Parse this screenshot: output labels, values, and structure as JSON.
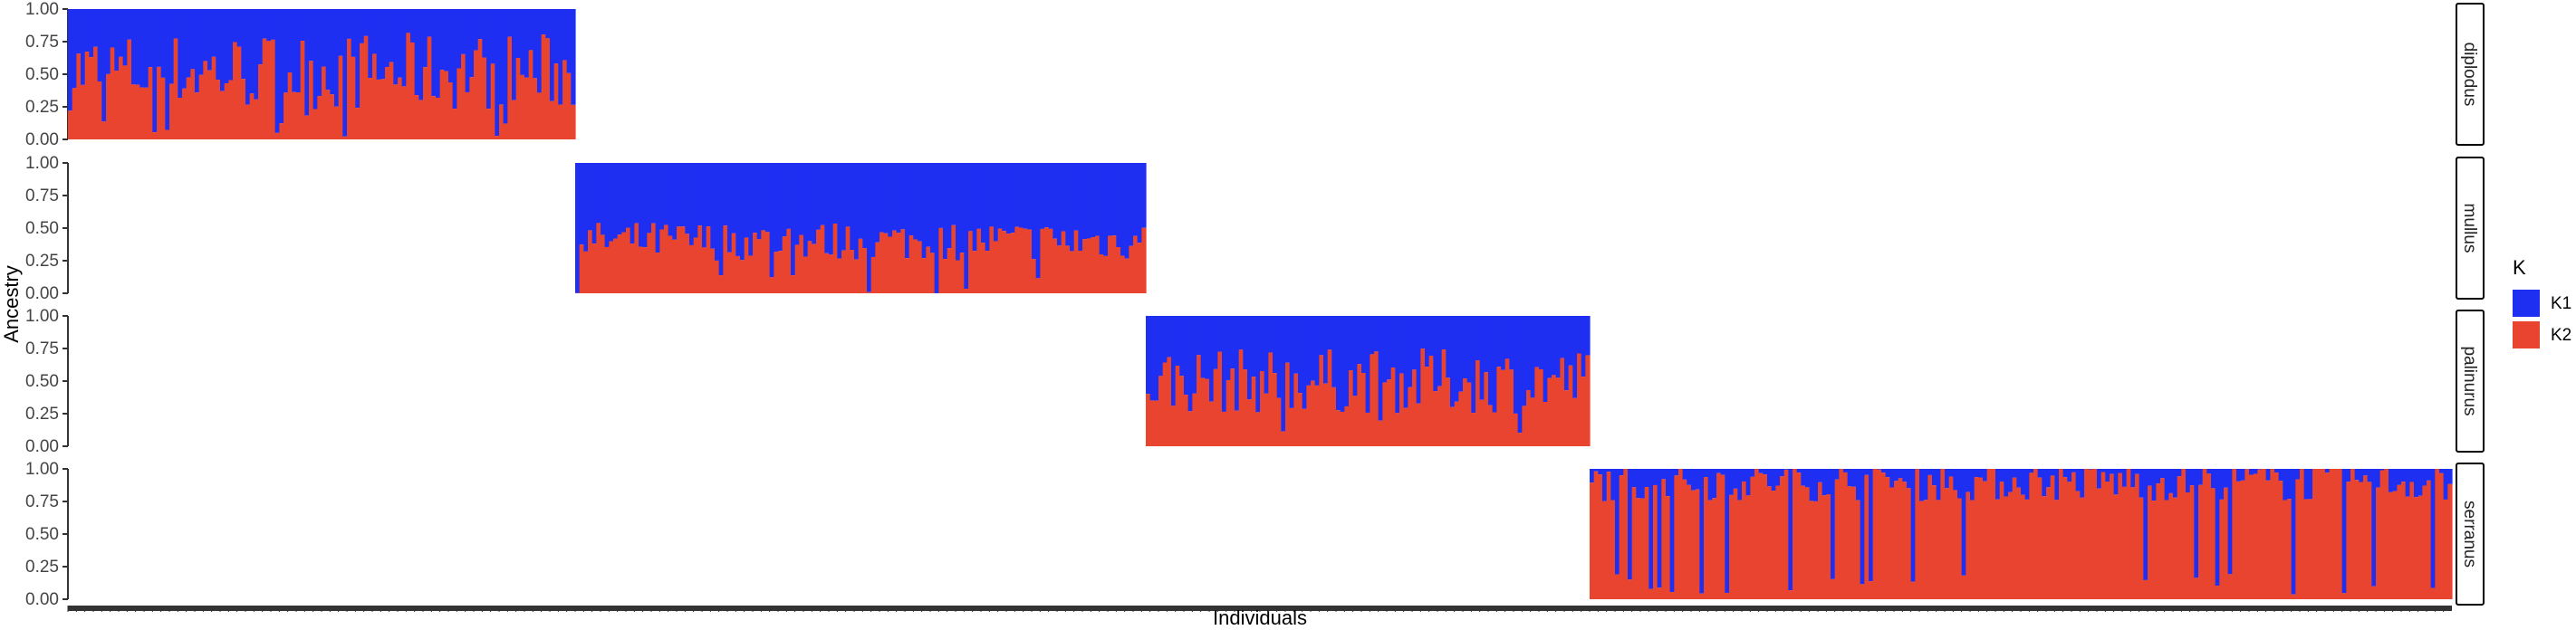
{
  "chart_data": {
    "type": "bar",
    "stacked": true,
    "xlabel": "Individuals",
    "ylabel": "Ancestry",
    "ylim": [
      0,
      1
    ],
    "yticks": [
      "0.00",
      "0.25",
      "0.50",
      "0.75",
      "1.00"
    ],
    "legend": {
      "title": "K",
      "placement": "right",
      "items": [
        {
          "label": "K1",
          "color": "#1f2ff2"
        },
        {
          "label": "K2",
          "color": "#e8442f"
        }
      ]
    },
    "series_names": [
      "K1",
      "K2"
    ],
    "panels": [
      {
        "label": "diplodus",
        "individuals": 120,
        "mean_K2": 0.52,
        "spread": 0.3
      },
      {
        "label": "mullus",
        "individuals": 135,
        "mean_K2": 0.4,
        "spread": 0.15
      },
      {
        "label": "palinurus",
        "individuals": 105,
        "mean_K2": 0.5,
        "spread": 0.25
      },
      {
        "label": "serranus",
        "individuals": 204,
        "mean_K2": 0.9,
        "spread": 0.15
      }
    ]
  }
}
